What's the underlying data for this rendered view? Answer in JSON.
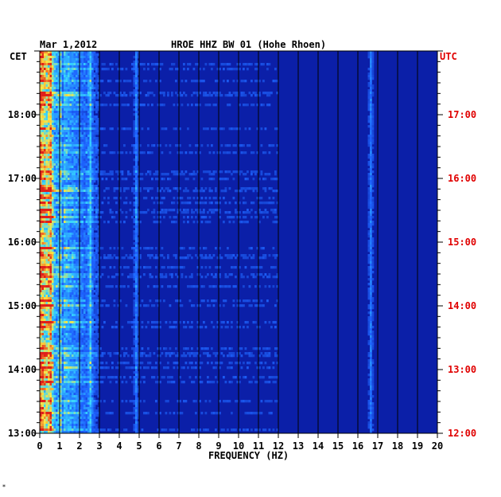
{
  "header": {
    "date": "Mar 1,2012",
    "station": "HROE HHZ BW 01 (Hohe Rhoen)"
  },
  "chart_data": {
    "type": "heatmap",
    "title": "HROE HHZ BW 01 (Hohe Rhoen)",
    "date": "Mar 1,2012",
    "xlabel": "FREQUENCY (HZ)",
    "xlim": [
      0,
      20
    ],
    "x_ticks": [
      "0",
      "1",
      "2",
      "3",
      "4",
      "5",
      "6",
      "7",
      "8",
      "9",
      "10",
      "11",
      "12",
      "13",
      "14",
      "15",
      "16",
      "17",
      "18",
      "19",
      "20"
    ],
    "left_axis_label": "CET",
    "right_axis_label": "UTC",
    "left_ticks": [
      "18:00",
      "17:00",
      "16:00",
      "15:00",
      "14:00",
      "13:00"
    ],
    "right_ticks": [
      "17:00",
      "16:00",
      "15:00",
      "14:00",
      "13:00",
      "12:00"
    ],
    "time_range_cet": [
      "13:00",
      "19:00"
    ],
    "colors": {
      "background": "#0b1fa8",
      "low": "#0a1a9a",
      "mid": "#1e63ff",
      "high_cyan": "#36d6ff",
      "high_yellow": "#ffe640",
      "peak_red": "#e0201a",
      "utc_label": "#e00000"
    },
    "persistent_bands_hz": [
      0.5,
      1.0,
      2.5,
      4.8,
      16.6
    ],
    "grid": "vertical lines at each 1 Hz"
  },
  "footer_mark": "*"
}
